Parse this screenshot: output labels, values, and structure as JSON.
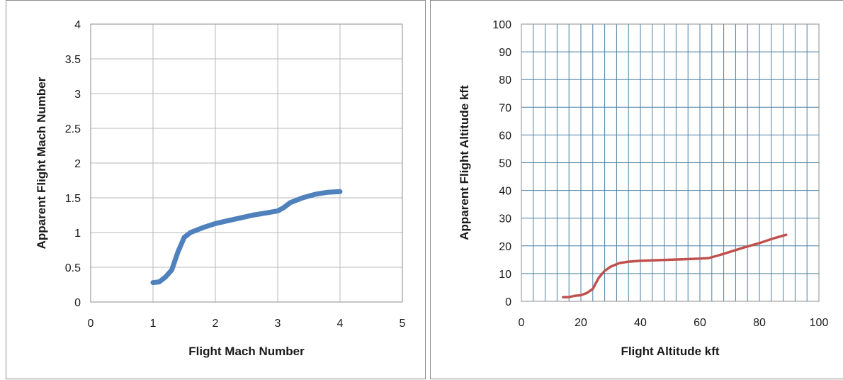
{
  "chart_data": [
    {
      "type": "line",
      "title": "",
      "xlabel": "Flight Mach Number",
      "ylabel": "Apparent Flight Mach Number",
      "xlim": [
        0,
        5
      ],
      "ylim": [
        0,
        4
      ],
      "xticks": [
        "0",
        "1",
        "2",
        "3",
        "4",
        "5"
      ],
      "yticks": [
        "0",
        "0.5",
        "1",
        "1.5",
        "2",
        "2.5",
        "3",
        "3.5",
        "4"
      ],
      "grid": "major",
      "legend": "none",
      "series": [
        {
          "color": "#4f81bd",
          "x": [
            1.0,
            1.1,
            1.2,
            1.3,
            1.4,
            1.5,
            1.6,
            1.8,
            2.0,
            2.2,
            2.4,
            2.6,
            2.8,
            3.0,
            3.1,
            3.2,
            3.4,
            3.6,
            3.8,
            4.0
          ],
          "y": [
            0.28,
            0.29,
            0.36,
            0.46,
            0.72,
            0.93,
            1.0,
            1.07,
            1.13,
            1.17,
            1.21,
            1.25,
            1.28,
            1.31,
            1.36,
            1.43,
            1.5,
            1.55,
            1.58,
            1.59
          ]
        }
      ]
    },
    {
      "type": "line",
      "title": "",
      "xlabel": "Flight Altitude  kft",
      "ylabel": "Apparent Flight Altitude  kft",
      "xlim": [
        0,
        100
      ],
      "ylim": [
        0,
        100
      ],
      "xticks": [
        "0",
        "20",
        "40",
        "60",
        "80",
        "100"
      ],
      "yticks": [
        "0",
        "10",
        "20",
        "30",
        "40",
        "50",
        "60",
        "70",
        "80",
        "90",
        "100"
      ],
      "grid": "major+minor",
      "legend": "none",
      "series": [
        {
          "color": "#c0504d",
          "x": [
            14,
            16,
            18,
            20,
            22,
            24,
            25,
            26,
            28,
            30,
            33,
            36,
            40,
            45,
            50,
            55,
            60,
            63,
            66,
            70,
            75,
            80,
            85,
            89
          ],
          "y": [
            1.5,
            1.5,
            2.0,
            2.2,
            3.0,
            4.5,
            6.5,
            8.5,
            11,
            12.5,
            13.8,
            14.3,
            14.6,
            14.8,
            15.0,
            15.2,
            15.4,
            15.6,
            16.5,
            17.8,
            19.5,
            21,
            22.8,
            24
          ]
        }
      ]
    }
  ]
}
